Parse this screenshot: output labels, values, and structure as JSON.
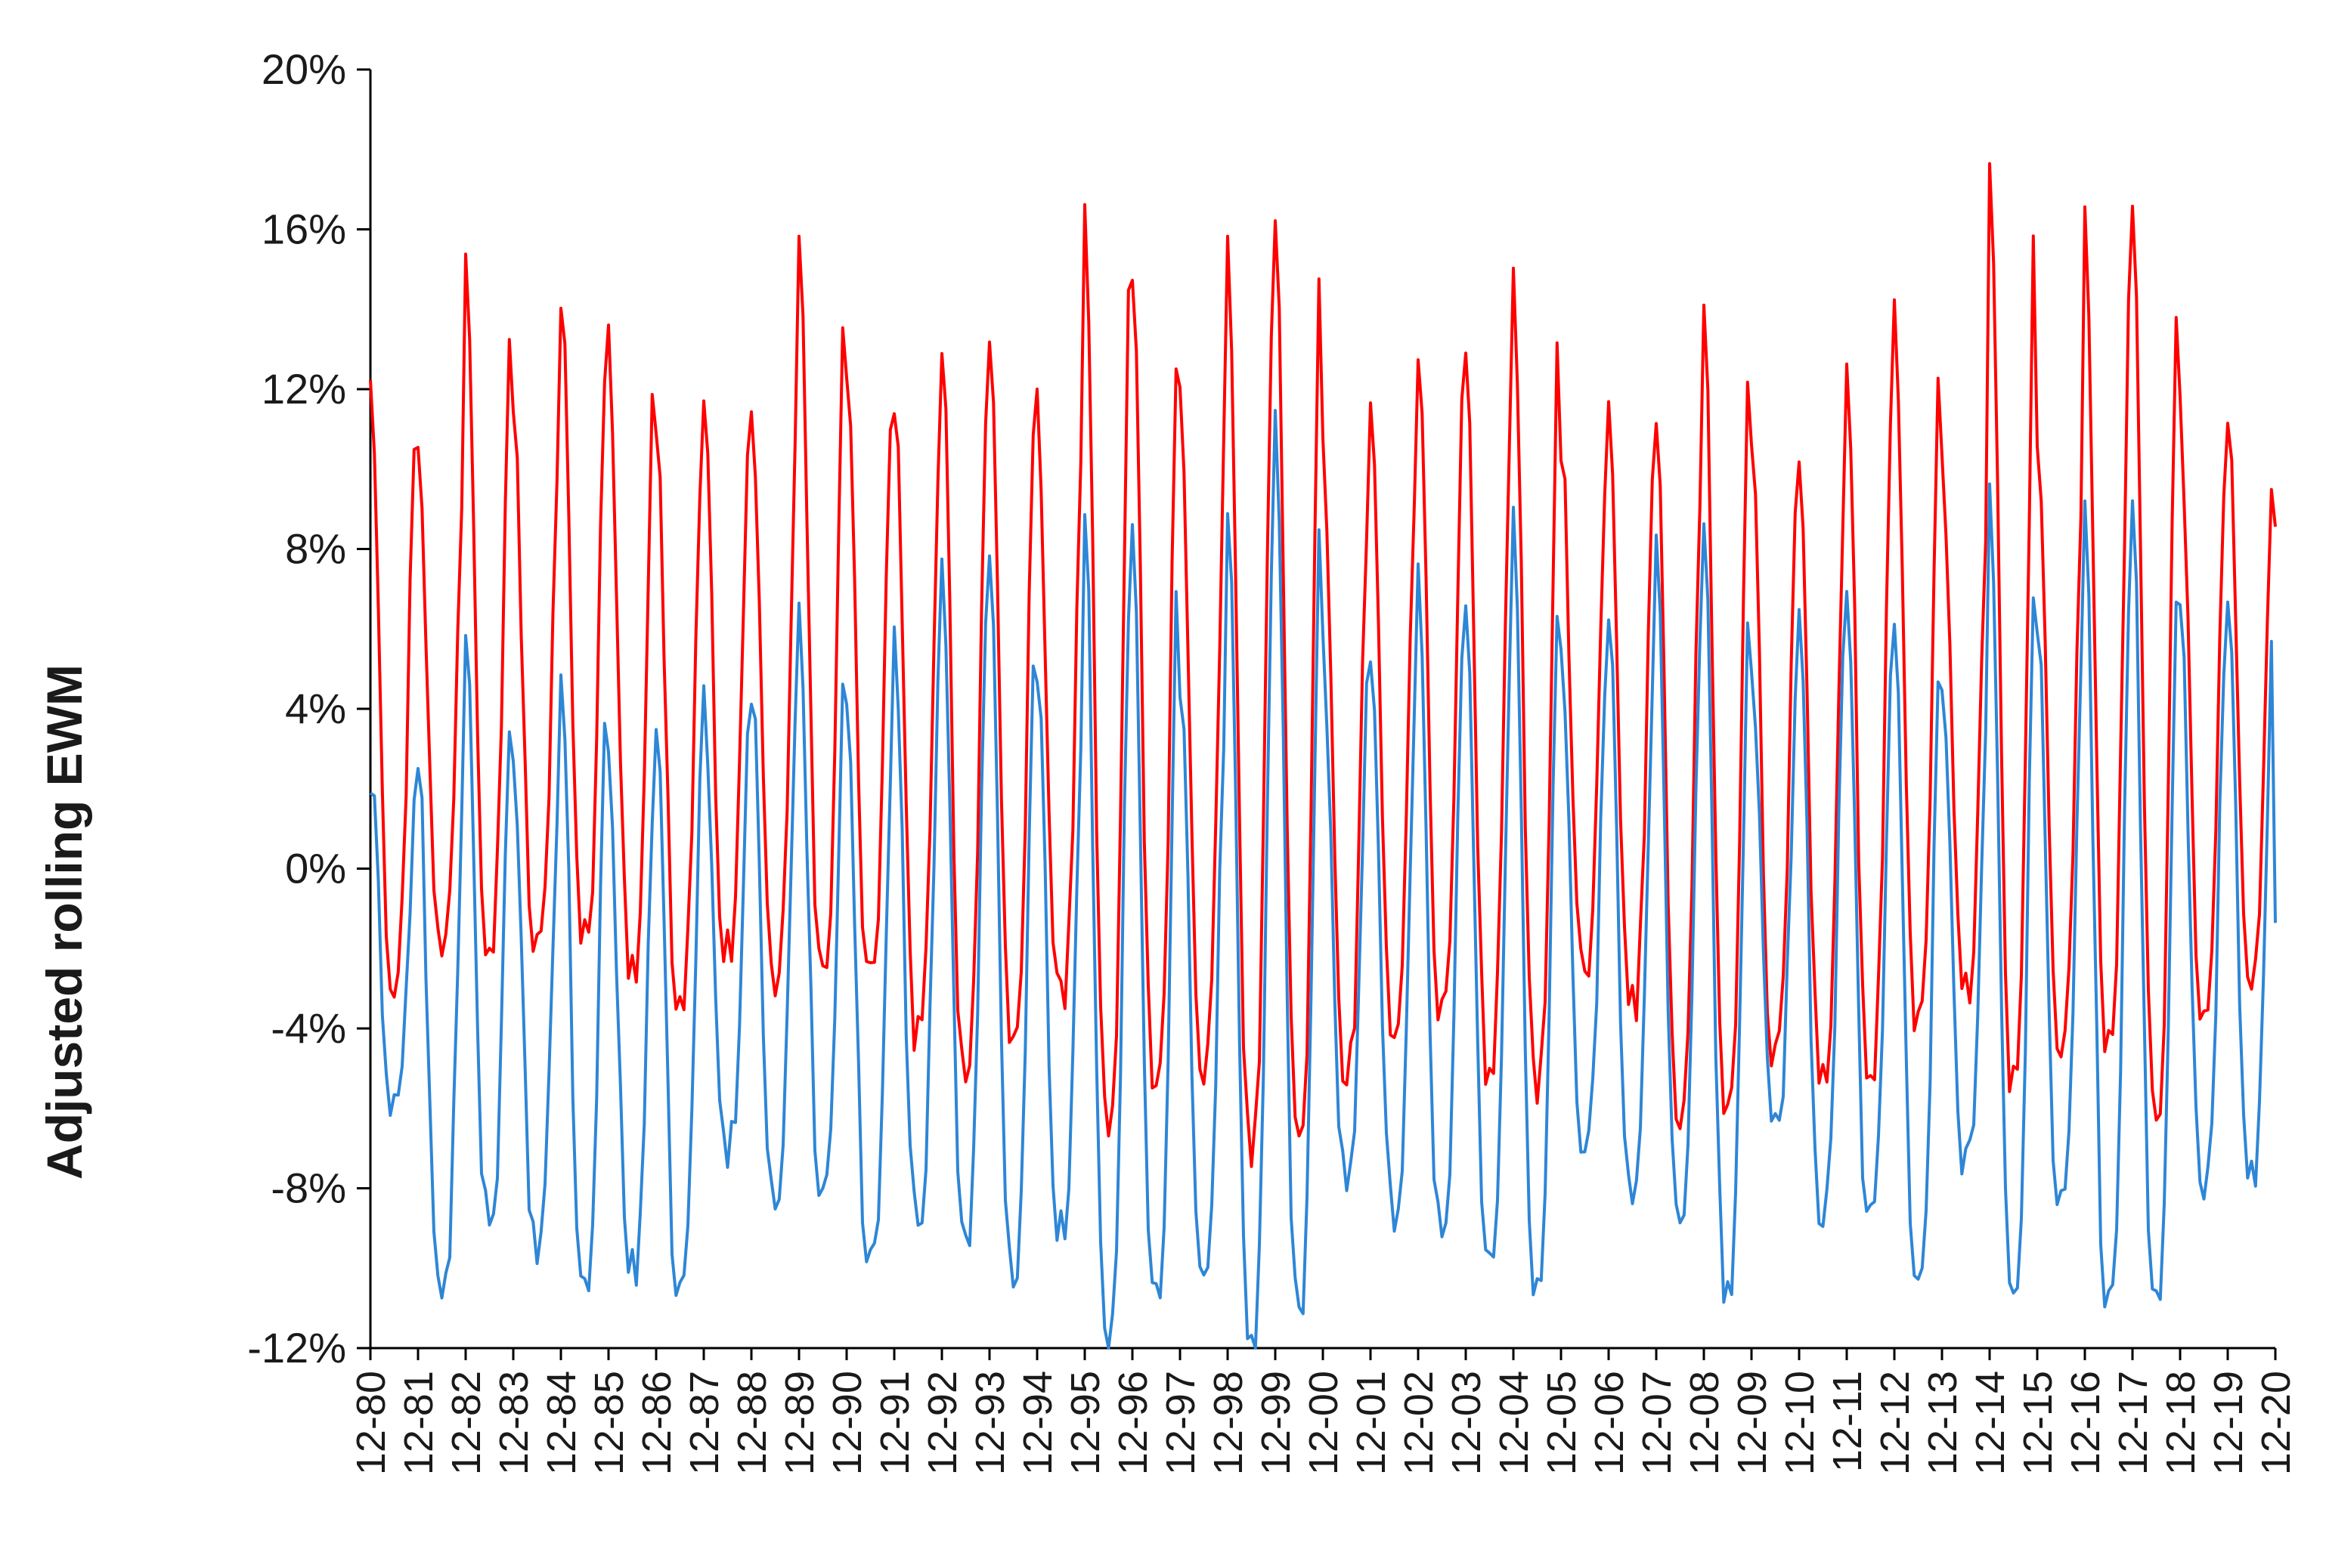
{
  "chart_data": {
    "type": "line",
    "title": "",
    "xlabel": "",
    "ylabel": "Adjusted rolling EWM",
    "ylim": [
      -0.12,
      0.2
    ],
    "yticks": [
      -0.12,
      -0.08,
      -0.04,
      0.0,
      0.04,
      0.08,
      0.12,
      0.16,
      0.2
    ],
    "ytick_labels": [
      "-12%",
      "-8%",
      "-4%",
      "0%",
      "4%",
      "8%",
      "12%",
      "16%",
      "20%"
    ],
    "xtick_labels": [
      "12-80",
      "12-81",
      "12-82",
      "12-83",
      "12-84",
      "12-85",
      "12-86",
      "12-87",
      "12-88",
      "12-89",
      "12-90",
      "12-91",
      "12-92",
      "12-93",
      "12-94",
      "12-95",
      "12-96",
      "12-97",
      "12-98",
      "12-99",
      "12-00",
      "12-01",
      "12-02",
      "12-03",
      "12-04",
      "12-05",
      "12-06",
      "12-07",
      "12-08",
      "12-09",
      "12-10",
      "12-11",
      "12-12",
      "12-13",
      "12-14",
      "12-15",
      "12-16",
      "12-17",
      "12-18",
      "12-19",
      "12-20"
    ],
    "grid": false,
    "legend": "none",
    "x_unit": "monthly, Dec-1980 to Dec-2020",
    "series_envelope_note": "Each series oscillates annually between its yearly peak and trough; values listed per year from Dec-80.",
    "series": [
      {
        "color": "#ff0000",
        "yearly_peaks": [
          0.125,
          0.107,
          0.155,
          0.112,
          0.144,
          0.131,
          0.109,
          0.113,
          0.119,
          0.156,
          0.123,
          0.119,
          0.131,
          0.13,
          0.115,
          0.164,
          0.149,
          0.122,
          0.158,
          0.168,
          0.103,
          0.111,
          0.131,
          0.13,
          0.147,
          0.108,
          0.112,
          0.115,
          0.137,
          0.106,
          0.1,
          0.126,
          0.137,
          0.1,
          0.178,
          0.107,
          0.161,
          0.166,
          0.113,
          0.111,
          0.088
        ],
        "yearly_troughs": [
          -0.028,
          -0.02,
          -0.018,
          -0.021,
          -0.018,
          -0.025,
          -0.034,
          -0.021,
          -0.031,
          -0.027,
          -0.026,
          -0.042,
          -0.05,
          -0.044,
          -0.034,
          -0.064,
          -0.056,
          -0.052,
          -0.069,
          -0.067,
          -0.051,
          -0.038,
          -0.036,
          -0.051,
          -0.055,
          -0.027,
          -0.035,
          -0.062,
          -0.062,
          -0.048,
          -0.052,
          -0.052,
          -0.038,
          -0.031,
          -0.054,
          -0.043,
          -0.043,
          -0.061,
          -0.034,
          -0.025,
          -0.024
        ]
      },
      {
        "color": "#2e86d6",
        "yearly_peaks": [
          0.021,
          0.027,
          0.055,
          0.022,
          0.052,
          0.027,
          0.033,
          0.041,
          0.046,
          0.061,
          0.041,
          0.061,
          0.078,
          0.074,
          0.05,
          0.087,
          0.085,
          0.048,
          0.094,
          0.114,
          0.055,
          0.052,
          0.071,
          0.064,
          0.089,
          0.057,
          0.062,
          0.08,
          0.081,
          0.05,
          0.065,
          0.069,
          0.064,
          0.046,
          0.094,
          0.062,
          0.088,
          0.09,
          0.068,
          0.068,
          -0.018
        ],
        "yearly_troughs": [
          -0.058,
          -0.107,
          -0.087,
          -0.095,
          -0.106,
          -0.101,
          -0.106,
          -0.07,
          -0.082,
          -0.08,
          -0.1,
          -0.088,
          -0.091,
          -0.099,
          -0.091,
          -0.12,
          -0.107,
          -0.098,
          -0.119,
          -0.11,
          -0.076,
          -0.085,
          -0.09,
          -0.1,
          -0.105,
          -0.072,
          -0.08,
          -0.092,
          -0.105,
          -0.064,
          -0.088,
          -0.09,
          -0.105,
          -0.072,
          -0.106,
          -0.084,
          -0.111,
          -0.109,
          -0.08,
          -0.079,
          -0.079
        ]
      }
    ]
  }
}
